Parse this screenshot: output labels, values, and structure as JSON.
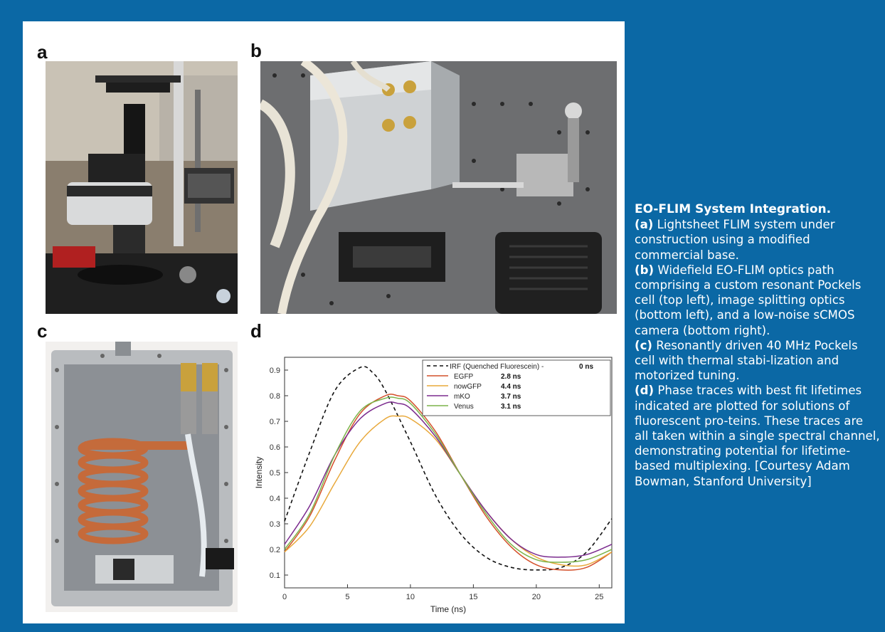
{
  "panels": {
    "a": {
      "letter": "a"
    },
    "b": {
      "letter": "b"
    },
    "c": {
      "letter": "c"
    },
    "d": {
      "letter": "d"
    }
  },
  "caption": {
    "title": "EO-FLIM System Integration.",
    "segments": [
      {
        "label": "(a)",
        "text": " Lightsheet FLIM system under construction using a modified commercial base."
      },
      {
        "label": "(b)",
        "text": " Widefield EO-FLIM optics path comprising a custom resonant Pockels cell (top left), image splitting optics (bottom left), and a low-noise sCMOS camera (bottom right)."
      },
      {
        "label": "(c)",
        "text": " Resonantly driven 40 MHz Pockels cell with thermal stabi-lization and motorized tuning."
      },
      {
        "label": "(d)",
        "text": " Phase traces with best fit lifetimes indicated are plotted for solutions of fluorescent pro-teins. These traces are all taken within a single spectral channel, demonstrating potential for lifetime-based multiplexing. [Courtesy Adam Bowman, Stanford University]"
      }
    ]
  },
  "chart_data": {
    "type": "line",
    "title": "",
    "xlabel": "Time (ns)",
    "ylabel": "Intensity",
    "xlim": [
      0,
      26
    ],
    "ylim": [
      0.05,
      0.95
    ],
    "xticks": [
      0,
      5,
      10,
      15,
      20,
      25
    ],
    "yticks": [
      0.1,
      0.2,
      0.3,
      0.4,
      0.5,
      0.6,
      0.7,
      0.8,
      0.9
    ],
    "grid": false,
    "legend_position": "top-right",
    "series": [
      {
        "name": "IRF (Quenched Fluorescein)",
        "lifetime": "0 ns",
        "color": "#111111",
        "dashed": true,
        "x": [
          0,
          2,
          4,
          6,
          7,
          8,
          10,
          12,
          14,
          16,
          18,
          20,
          22,
          24,
          26
        ],
        "y": [
          0.31,
          0.58,
          0.82,
          0.91,
          0.89,
          0.82,
          0.62,
          0.41,
          0.26,
          0.17,
          0.13,
          0.12,
          0.13,
          0.19,
          0.32
        ]
      },
      {
        "name": "EGFP",
        "lifetime": "2.8 ns",
        "color": "#d4502a",
        "dashed": false,
        "x": [
          0,
          2,
          4,
          6,
          8,
          9,
          10,
          12,
          14,
          16,
          18,
          20,
          22,
          24,
          26
        ],
        "y": [
          0.19,
          0.33,
          0.55,
          0.73,
          0.8,
          0.8,
          0.78,
          0.66,
          0.49,
          0.33,
          0.21,
          0.14,
          0.12,
          0.13,
          0.19
        ]
      },
      {
        "name": "nowGFP",
        "lifetime": "4.4 ns",
        "color": "#e8a83a",
        "dashed": false,
        "x": [
          0,
          2,
          4,
          6,
          8,
          9,
          10,
          12,
          14,
          16,
          18,
          20,
          22,
          24,
          26
        ],
        "y": [
          0.19,
          0.29,
          0.46,
          0.62,
          0.71,
          0.72,
          0.71,
          0.63,
          0.49,
          0.35,
          0.24,
          0.17,
          0.14,
          0.14,
          0.19
        ]
      },
      {
        "name": "mKO",
        "lifetime": "3.7 ns",
        "color": "#7b2b8e",
        "dashed": false,
        "x": [
          0,
          2,
          4,
          6,
          8,
          9,
          10,
          12,
          14,
          16,
          18,
          20,
          22,
          24,
          26
        ],
        "y": [
          0.22,
          0.37,
          0.57,
          0.71,
          0.77,
          0.77,
          0.75,
          0.64,
          0.49,
          0.35,
          0.24,
          0.18,
          0.17,
          0.18,
          0.22
        ]
      },
      {
        "name": "Venus",
        "lifetime": "3.1 ns",
        "color": "#7cb44a",
        "dashed": false,
        "x": [
          0,
          2,
          4,
          6,
          8,
          9,
          10,
          12,
          14,
          16,
          18,
          20,
          22,
          24,
          26
        ],
        "y": [
          0.2,
          0.34,
          0.57,
          0.74,
          0.79,
          0.79,
          0.77,
          0.65,
          0.49,
          0.34,
          0.22,
          0.16,
          0.15,
          0.16,
          0.2
        ]
      }
    ]
  }
}
